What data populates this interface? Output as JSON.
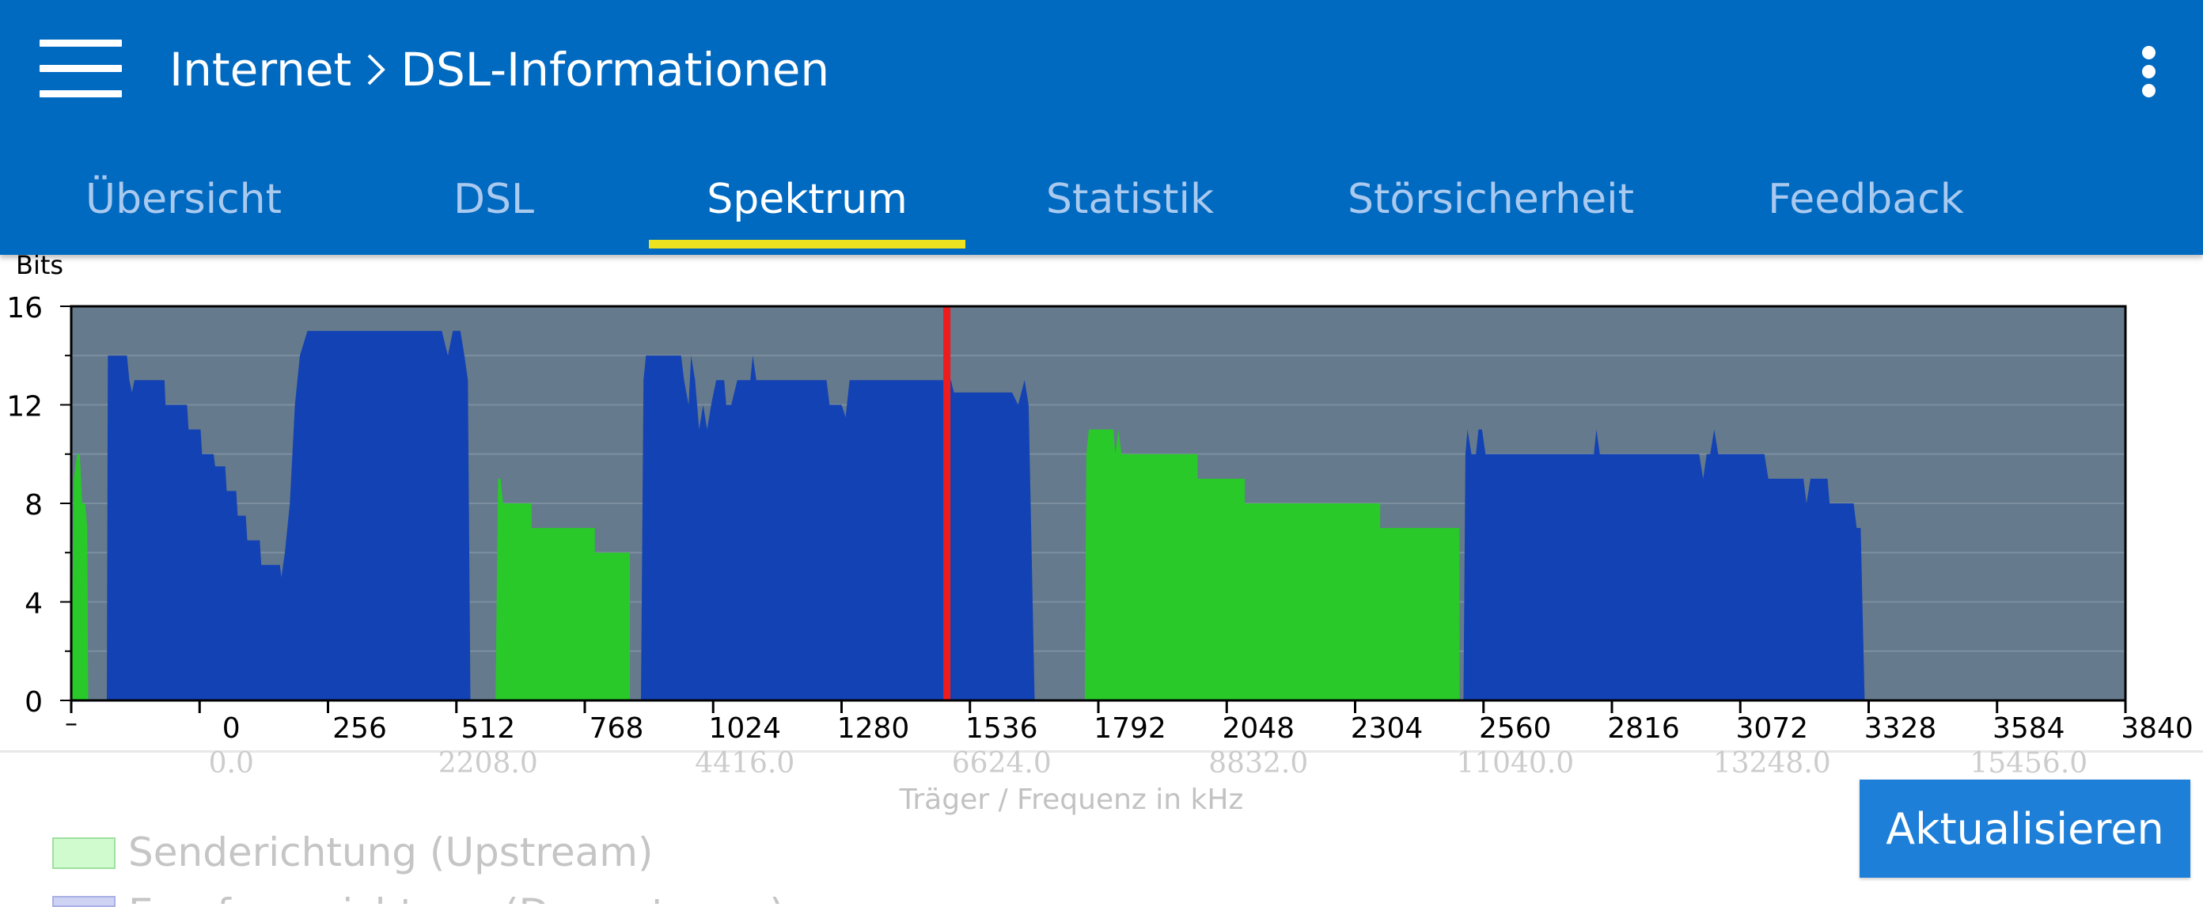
{
  "header": {
    "menu_icon": "hamburger-menu-icon",
    "breadcrumb_parent": "Internet",
    "breadcrumb_current": "DSL-Informationen",
    "overflow_icon": "more-vert-icon",
    "background": "#0069c0"
  },
  "tabs": [
    {
      "label": "Übersicht",
      "active": false
    },
    {
      "label": "DSL",
      "active": false
    },
    {
      "label": "Spektrum",
      "active": true
    },
    {
      "label": "Statistik",
      "active": false
    },
    {
      "label": "Störsicherheit",
      "active": false
    },
    {
      "label": "Feedback",
      "active": false
    }
  ],
  "chart_data": {
    "type": "area",
    "ylabel": "Bits",
    "xlabel": "Träger / Frequenz in kHz",
    "ylim": [
      0,
      16
    ],
    "yticks": [
      0,
      4,
      8,
      12,
      16
    ],
    "xlim": [
      -256,
      3840
    ],
    "xticks": [
      "0",
      "256",
      "512",
      "768",
      "1024",
      "1280",
      "1536",
      "1792",
      "2048",
      "2304",
      "2560",
      "2816",
      "3072",
      "3328",
      "3584",
      "3840"
    ],
    "xticks_secondary": [
      "0.0",
      "2208.0",
      "4416.0",
      "6624.0",
      "8832.0",
      "11040.0",
      "13248.0",
      "15456.0"
    ],
    "marker_carrier": 1490,
    "colors": {
      "upstream": "#29c929",
      "downstream": "#1342b4",
      "background": "#657a8d",
      "marker": "#ee1c1c"
    },
    "series": [
      {
        "name": "Senderichtung (Upstream)",
        "color": "#29c929",
        "segments": [
          [
            [
              -256,
              0
            ],
            [
              -251,
              9
            ],
            [
              -244,
              10
            ],
            [
              -239,
              10
            ],
            [
              -234,
              8
            ],
            [
              -228,
              8
            ],
            [
              -224,
              7
            ],
            [
              -222,
              0
            ]
          ],
          [
            [
              590,
              0
            ],
            [
              595,
              9
            ],
            [
              600,
              9
            ],
            [
              605,
              8
            ],
            [
              662,
              8
            ],
            [
              662,
              7
            ],
            [
              788,
              7
            ],
            [
              788,
              6
            ],
            [
              858,
              6
            ],
            [
              858,
              0
            ]
          ],
          [
            [
              1765,
              0
            ],
            [
              1768,
              10
            ],
            [
              1773,
              11
            ],
            [
              1822,
              11
            ],
            [
              1826,
              10
            ],
            [
              1832,
              11
            ],
            [
              1838,
              10
            ],
            [
              1990,
              10
            ],
            [
              1990,
              9
            ],
            [
              2084,
              9
            ],
            [
              2084,
              8
            ],
            [
              2354,
              8
            ],
            [
              2354,
              7
            ],
            [
              2512,
              7
            ],
            [
              2512,
              0
            ]
          ]
        ]
      },
      {
        "name": "Empfangsrichtung (Downstream)",
        "color": "#1342b4",
        "segments": [
          [
            [
              -185,
              0
            ],
            [
              -183,
              14
            ],
            [
              -145,
              14
            ],
            [
              -140,
              13
            ],
            [
              -135,
              12.5
            ],
            [
              -130,
              13
            ],
            [
              -70,
              13
            ],
            [
              -68,
              12
            ],
            [
              -25,
              12
            ],
            [
              -22,
              11
            ],
            [
              2,
              11
            ],
            [
              5,
              10
            ],
            [
              28,
              10
            ],
            [
              31,
              9.5
            ],
            [
              51,
              9.5
            ],
            [
              54,
              8.5
            ],
            [
              73,
              8.5
            ],
            [
              76,
              7.5
            ],
            [
              92,
              7.5
            ],
            [
              95,
              6.5
            ],
            [
              120,
              6.5
            ],
            [
              123,
              5.5
            ],
            [
              160,
              5.5
            ],
            [
              163,
              5
            ],
            [
              170,
              6
            ],
            [
              180,
              8
            ],
            [
              190,
              12
            ],
            [
              200,
              14
            ],
            [
              215,
              15
            ],
            [
              483,
              15
            ],
            [
              495,
              14
            ],
            [
              505,
              15
            ],
            [
              520,
              15
            ],
            [
              528,
              14
            ],
            [
              535,
              13
            ],
            [
              540,
              0
            ]
          ],
          [
            [
              880,
              0
            ],
            [
              885,
              13
            ],
            [
              890,
              14
            ],
            [
              960,
              14
            ],
            [
              966,
              13
            ],
            [
              975,
              12
            ],
            [
              980,
              14
            ],
            [
              988,
              13
            ],
            [
              996,
              11
            ],
            [
              1004,
              12
            ],
            [
              1012,
              11
            ],
            [
              1020,
              12
            ],
            [
              1030,
              13
            ],
            [
              1046,
              13
            ],
            [
              1050,
              12
            ],
            [
              1060,
              12
            ],
            [
              1072,
              13
            ],
            [
              1098,
              13
            ],
            [
              1103,
              14
            ],
            [
              1110,
              13
            ],
            [
              1250,
              13
            ],
            [
              1256,
              12
            ],
            [
              1280,
              12
            ],
            [
              1288,
              11.5
            ],
            [
              1296,
              13
            ],
            [
              1498,
              13
            ],
            [
              1504,
              12.5
            ],
            [
              1620,
              12.5
            ],
            [
              1632,
              12
            ],
            [
              1645,
              13
            ],
            [
              1653,
              12
            ],
            [
              1665,
              0
            ]
          ],
          [
            [
              2520,
              0
            ],
            [
              2524,
              10
            ],
            [
              2528,
              11
            ],
            [
              2536,
              10
            ],
            [
              2545,
              10
            ],
            [
              2550,
              11
            ],
            [
              2557,
              11
            ],
            [
              2564,
              10
            ],
            [
              2780,
              10
            ],
            [
              2785,
              11
            ],
            [
              2792,
              10
            ],
            [
              2990,
              10
            ],
            [
              2998,
              9
            ],
            [
              3005,
              10
            ],
            [
              3012,
              10
            ],
            [
              3020,
              11
            ],
            [
              3028,
              10
            ],
            [
              3120,
              10
            ],
            [
              3128,
              9
            ],
            [
              3198,
              9
            ],
            [
              3204,
              8
            ],
            [
              3212,
              9
            ],
            [
              3246,
              9
            ],
            [
              3250,
              8
            ],
            [
              3298,
              8
            ],
            [
              3304,
              7
            ],
            [
              3312,
              7
            ],
            [
              3320,
              0
            ]
          ]
        ]
      }
    ]
  },
  "legend": {
    "upstream_label": "Senderichtung (Upstream)",
    "downstream_label": "Empfangsrichtung (Downstream)"
  },
  "actions": {
    "refresh_label": "Aktualisieren"
  }
}
